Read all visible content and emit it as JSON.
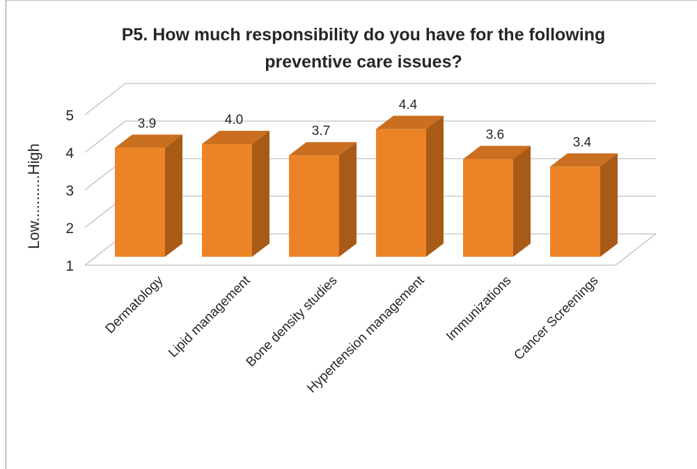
{
  "chart_data": {
    "type": "bar",
    "title": "P5.  How much responsibility do you have for the following preventive care issues?",
    "title_lines": [
      "P5.  How much responsibility do you have for the following",
      "preventive care issues?"
    ],
    "ylabel": "Low...........High",
    "xlabel": "",
    "categories": [
      "Dermatology",
      "Lipid management",
      "Bone density studies",
      "Hypertension management",
      "Immunizations",
      "Cancer Screenings"
    ],
    "values": [
      3.9,
      4.0,
      3.7,
      4.4,
      3.6,
      3.4
    ],
    "value_labels": [
      "3.9",
      "4.0",
      "3.7",
      "4.4",
      "3.6",
      "3.4"
    ],
    "ylim": [
      1,
      5
    ],
    "yticks": [
      "1",
      "2",
      "3",
      "4",
      "5"
    ],
    "grid": true,
    "legend": "none",
    "colors": {
      "front": "#ec8427",
      "side": "#a85b17",
      "top": "#c96f1f",
      "grid": "#bfbfbf",
      "text": "#262626"
    }
  }
}
